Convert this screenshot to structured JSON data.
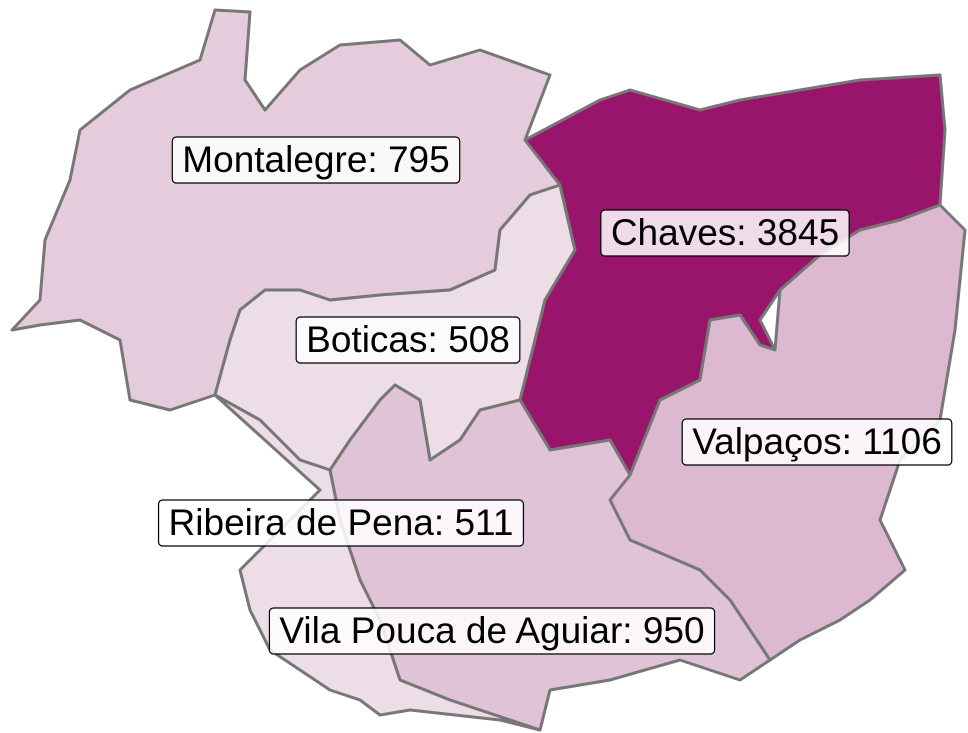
{
  "map": {
    "color_scale": [
      "#ecdde7",
      "#99156b"
    ],
    "regions": [
      {
        "label": "Montalegre: 795",
        "value": 795
      },
      {
        "label": "Boticas: 508",
        "value": 508
      },
      {
        "label": "Chaves: 3845",
        "value": 3845
      },
      {
        "label": "Valpaços: 1106",
        "value": 1106
      },
      {
        "label": "Vila Pouca de Aguiar: 950",
        "value": 950
      },
      {
        "label": "Ribeira de Pena: 511",
        "value": 511
      }
    ]
  }
}
